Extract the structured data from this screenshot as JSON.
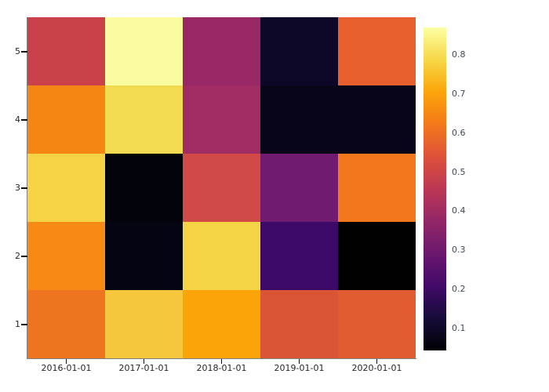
{
  "figure": {
    "background": "#ffffff",
    "axis_line_color": "#808080",
    "tick_mark_color": "#111111",
    "axis_label_color": "#262626",
    "colorbar_label_color": "#3e4a59"
  },
  "chart_data": {
    "type": "heatmap",
    "title": "",
    "xlabel": "",
    "ylabel": "",
    "x_categories": [
      "2016-01-01",
      "2017-01-01",
      "2018-01-01",
      "2019-01-01",
      "2020-01-01"
    ],
    "y_categories_top_to_bottom": [
      "5",
      "4",
      "3",
      "2",
      "1"
    ],
    "colormap": "inferno",
    "rows_top_to_bottom": [
      {
        "y": "5",
        "values": [
          0.5,
          0.86,
          0.39,
          0.1,
          0.57
        ],
        "colors": [
          "#cb4149",
          "#fbfba0",
          "#9a2866",
          "#0d0828",
          "#e5602c"
        ]
      },
      {
        "y": "4",
        "values": [
          0.64,
          0.78,
          0.41,
          0.08,
          0.08
        ],
        "colors": [
          "#f68613",
          "#f2da51",
          "#a12c63",
          "#070517",
          "#070517"
        ]
      },
      {
        "y": "3",
        "values": [
          0.76,
          0.06,
          0.51,
          0.3,
          0.62
        ],
        "colors": [
          "#f5d344",
          "#03030c",
          "#d14a47",
          "#701b70",
          "#f2771d"
        ]
      },
      {
        "y": "2",
        "values": [
          0.65,
          0.07,
          0.77,
          0.2,
          0.05
        ],
        "colors": [
          "#f78a15",
          "#050412",
          "#f4d445",
          "#3c0a66",
          "#010102"
        ]
      },
      {
        "y": "1",
        "values": [
          0.61,
          0.74,
          0.7,
          0.53,
          0.56
        ],
        "colors": [
          "#ef7420",
          "#f6c63c",
          "#fba40a",
          "#d95536",
          "#e15c31"
        ]
      }
    ],
    "colorbar": {
      "vmin": 0.044,
      "vmax": 0.87,
      "tick_values": [
        0.8,
        0.7,
        0.6,
        0.5,
        0.4,
        0.3,
        0.2,
        0.1
      ],
      "tick_labels": [
        "0.8",
        "0.7",
        "0.6",
        "0.5",
        "0.4",
        "0.3",
        "0.2",
        "0.1"
      ],
      "gradient_top_to_bottom": [
        "#fcffa4",
        "#f6d746",
        "#fca50a",
        "#f37819",
        "#dd513a",
        "#bc3754",
        "#932667",
        "#6a176e",
        "#420a68",
        "#160b39",
        "#000004"
      ]
    },
    "legend_position": "right-colorbar",
    "grid": false
  }
}
